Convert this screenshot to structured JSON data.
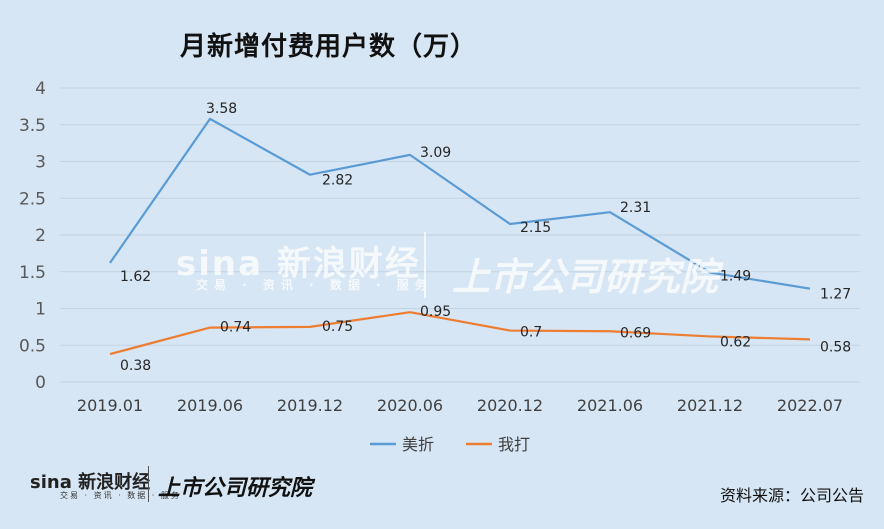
{
  "chart_data": {
    "type": "line",
    "title": "月新增付费用户数（万）",
    "categories": [
      "2019.01",
      "2019.06",
      "2019.12",
      "2020.06",
      "2020.12",
      "2021.06",
      "2021.12",
      "2022.07"
    ],
    "series": [
      {
        "name": "美折",
        "color": "#5b9bd5",
        "values": [
          1.62,
          3.58,
          2.82,
          3.09,
          2.15,
          2.31,
          1.49,
          1.27
        ],
        "labels": [
          "1.62",
          "3.58",
          "2.82",
          "3.09",
          "2.15",
          "2.31",
          "1.49",
          "1.27"
        ]
      },
      {
        "name": "我打",
        "color": "#ed7d31",
        "values": [
          0.38,
          0.74,
          0.75,
          0.95,
          0.7,
          0.69,
          0.62,
          0.58
        ],
        "labels": [
          "0.38",
          "0.74",
          "0.75",
          "0.95",
          "0.7",
          "0.69",
          "0.62",
          "0.58"
        ]
      }
    ],
    "ylim": [
      0,
      4
    ],
    "yticks": [
      "0",
      "0.5",
      "1",
      "1.5",
      "2",
      "2.5",
      "3",
      "3.5",
      "4"
    ],
    "grid": true,
    "legend_position": "bottom"
  },
  "source_text": "资料来源：公司公告",
  "watermark": {
    "brand": "sina 新浪财经",
    "brand_sub": "交易 · 资讯 · 数据 · 服务",
    "research": "上市公司研究院"
  },
  "footer_logo": {
    "brand": "sina 新浪财经",
    "brand_sub": "交易 · 资讯 · 数据 · 服务",
    "research": "上市公司研究院"
  }
}
